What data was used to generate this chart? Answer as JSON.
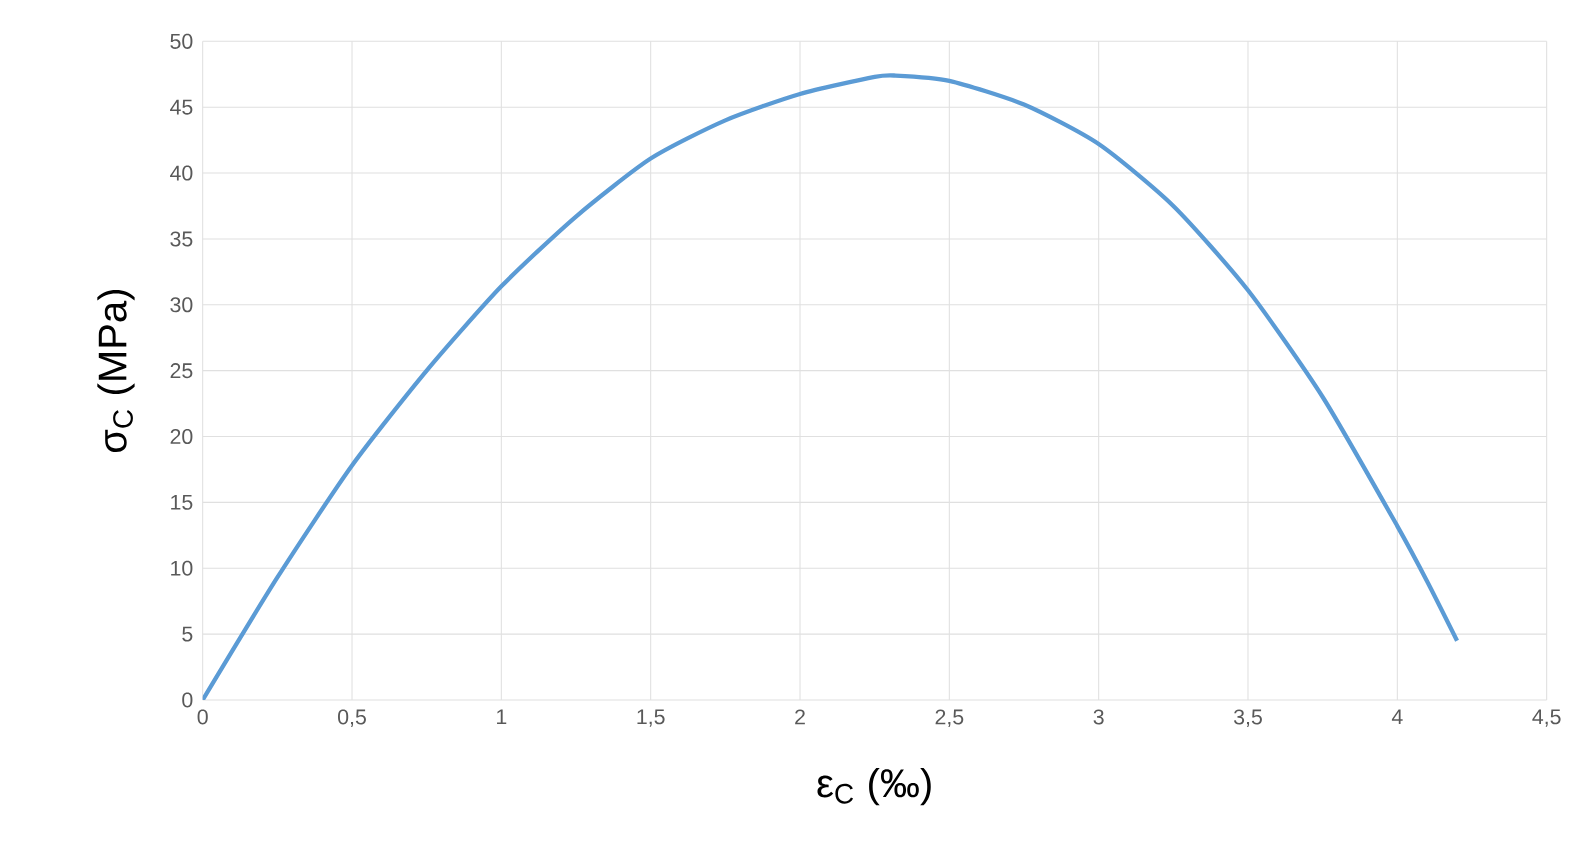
{
  "chart_data": {
    "type": "line",
    "xlabel": "ε$_{C}$ (‰)",
    "ylabel": "σ$_{C}$ (MPa)",
    "x": [
      0,
      0.25,
      0.5,
      0.75,
      1,
      1.25,
      1.5,
      1.75,
      2,
      2.25,
      2.32,
      2.5,
      2.75,
      3,
      3.25,
      3.5,
      3.75,
      4,
      4.1,
      4.2
    ],
    "series": [
      {
        "color": "#5b9bd5",
        "values": [
          0,
          9.3,
          17.8,
          25,
          31.4,
          36.7,
          41.1,
          44,
          46,
          47.3,
          47.4,
          47,
          45.2,
          42.2,
          37.5,
          31.1,
          23,
          13.2,
          9,
          4.5
        ]
      }
    ],
    "xlim": [
      0,
      4.5
    ],
    "ylim": [
      0,
      50
    ],
    "xticks": [
      0,
      {
        "value": 0.5,
        "label": "0,5"
      },
      1,
      {
        "value": 1.5,
        "label": "1,5"
      },
      2,
      {
        "value": 2.5,
        "label": "2,5"
      },
      3,
      {
        "value": 3.5,
        "label": "3,5"
      },
      4,
      {
        "value": 4.5,
        "label": "4,5"
      }
    ],
    "yticks": [
      0,
      5,
      10,
      15,
      20,
      25,
      30,
      35,
      40,
      45,
      50
    ],
    "grid": true,
    "marker": "none",
    "line_style": "solid"
  }
}
